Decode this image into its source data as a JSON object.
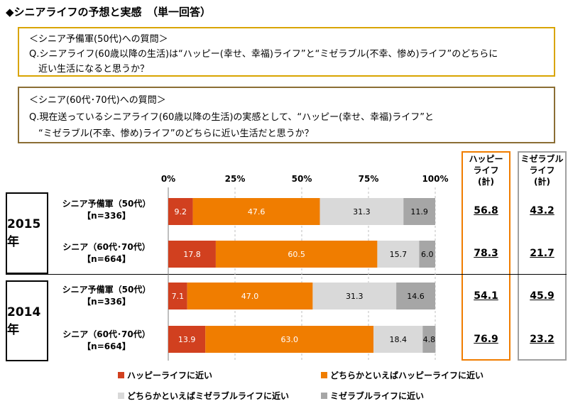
{
  "title": "◆シニアライフの予想と実感　（単一回答）",
  "question1": {
    "heading": "＜シニア予備軍(50代)への質問＞",
    "line1": "Q.シニアライフ(60歳以降の生活)は“ハッピー(幸せ、幸福)ライフ”と“ミゼラブル(不幸、惨め)ライフ”のどちらに",
    "line2": "近い生活になると思うか？"
  },
  "question2": {
    "heading": "＜シニア(60代･70代)への質問＞",
    "line1": "Q.現在送っているシニアライフ(60歳以降の生活)の実感として、“ハッピー(幸せ、幸福)ライフ”と",
    "line2": "“ミゼラブル(不幸、惨め)ライフ”のどちらに近い生活だと思うか？"
  },
  "columns": {
    "happy_line1": "ハッピー",
    "happy_line2": "ライフ",
    "happy_line3": "(計)",
    "misery_line1": "ミゼラブル",
    "misery_line2": "ライフ",
    "misery_line3": "(計)"
  },
  "colors": {
    "happy": "#d1401f",
    "rather_happy": "#f07d00",
    "rather_misery": "#d9d9d9",
    "misery": "#a6a6a6",
    "happy_box": "#f07d00",
    "misery_box": "#a0a0a0"
  },
  "chart_data": {
    "type": "bar",
    "orientation": "horizontal",
    "stacked": "percent",
    "x_ticks": [
      "0%",
      "25%",
      "50%",
      "75%",
      "100%"
    ],
    "xlim": [
      0,
      100
    ],
    "legend_position": "bottom",
    "series": [
      {
        "name": "ハッピーライフに近い",
        "color": "#d1401f"
      },
      {
        "name": "どちらかといえばハッピーライフに近い",
        "color": "#f07d00"
      },
      {
        "name": "どちらかといえばミゼラブルライフに近い",
        "color": "#d9d9d9"
      },
      {
        "name": "ミゼラブルライフに近い",
        "color": "#a6a6a6"
      }
    ],
    "groups": [
      {
        "year": "2015年",
        "rows": [
          {
            "label1": "シニア予備軍（50代）",
            "label2": "【n=336】",
            "values": [
              9.2,
              47.6,
              31.3,
              11.9
            ],
            "labels": [
              "9.2",
              "47.6",
              "31.3",
              "11.9"
            ],
            "happy_total": "56.8",
            "misery_total": "43.2"
          },
          {
            "label1": "シニア（60代･70代）",
            "label2": "【n=664】",
            "values": [
              17.8,
              60.5,
              15.7,
              6.0
            ],
            "labels": [
              "17.8",
              "60.5",
              "15.7",
              "6.0"
            ],
            "happy_total": "78.3",
            "misery_total": "21.7"
          }
        ]
      },
      {
        "year": "2014年",
        "rows": [
          {
            "label1": "シニア予備軍（50代）",
            "label2": "【n=336】",
            "values": [
              7.1,
              47.0,
              31.3,
              14.6
            ],
            "labels": [
              "7.1",
              "47.0",
              "31.3",
              "14.6"
            ],
            "happy_total": "54.1",
            "misery_total": "45.9"
          },
          {
            "label1": "シニア（60代･70代）",
            "label2": "【n=664】",
            "values": [
              13.9,
              63.0,
              18.4,
              4.8
            ],
            "labels": [
              "13.9",
              "63.0",
              "18.4",
              "4.8"
            ],
            "happy_total": "76.9",
            "misery_total": "23.2"
          }
        ]
      }
    ]
  }
}
